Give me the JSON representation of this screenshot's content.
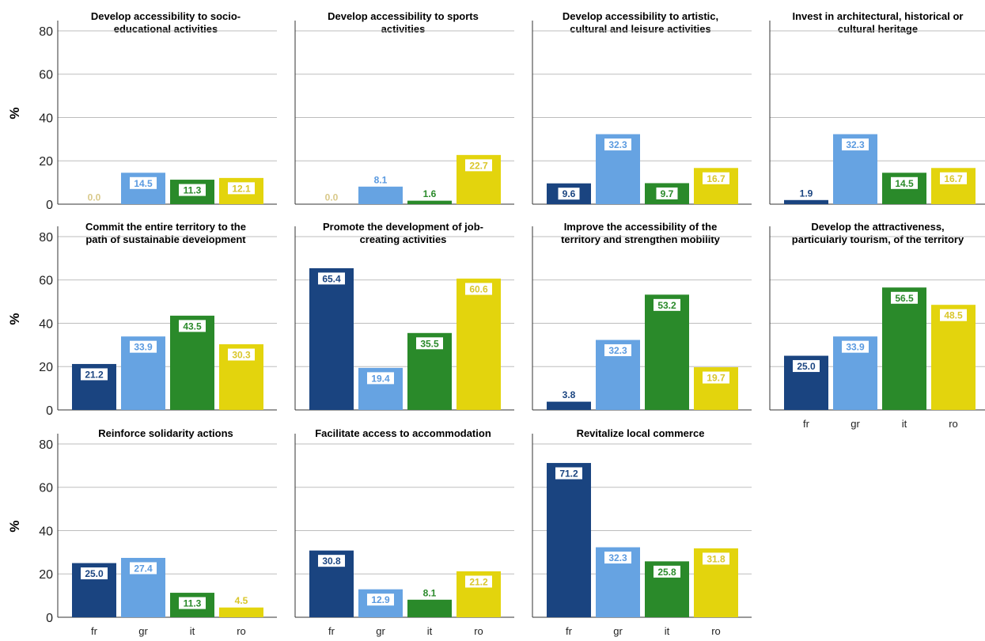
{
  "chart_data": {
    "type": "bar",
    "ylabel": "%",
    "ylim": [
      0,
      84
    ],
    "yticks": [
      0,
      20,
      40,
      60,
      80
    ],
    "grid": true,
    "categories": [
      "fr",
      "gr",
      "it",
      "ro"
    ],
    "colors": [
      "#1a4480",
      "#66a3e2",
      "#2a8a2a",
      "#e3d40d"
    ],
    "label_colors": [
      "#1a4480",
      "#5a9ae0",
      "#2a8a2a",
      "#d9c62a"
    ],
    "zero_label_color": "#d9c98a",
    "panels": [
      {
        "title": "Develop accessibility to socio-educational activities",
        "values": [
          0.0,
          14.5,
          11.3,
          12.1
        ]
      },
      {
        "title": "Develop accessibility to sports activities",
        "values": [
          0.0,
          8.1,
          1.6,
          22.7
        ]
      },
      {
        "title": "Develop accessibility to artistic, cultural and leisure activities",
        "values": [
          9.6,
          32.3,
          9.7,
          16.7
        ]
      },
      {
        "title": "Invest in architectural, historical or cultural heritage",
        "values": [
          1.9,
          32.3,
          14.5,
          16.7
        ]
      },
      {
        "title": "Commit the entire territory to the path of sustainable development",
        "values": [
          21.2,
          33.9,
          43.5,
          30.3
        ]
      },
      {
        "title": "Promote the development of job-creating activities",
        "values": [
          65.4,
          19.4,
          35.5,
          60.6
        ]
      },
      {
        "title": "Improve the accessibility of the territory and strengthen mobility",
        "values": [
          3.8,
          32.3,
          53.2,
          19.7
        ]
      },
      {
        "title": "Develop the attractiveness, particularly tourism, of the territory",
        "values": [
          25.0,
          33.9,
          56.5,
          48.5
        ]
      },
      {
        "title": "Reinforce solidarity actions",
        "values": [
          25.0,
          27.4,
          11.3,
          4.5
        ]
      },
      {
        "title": "Facilitate access to accommodation",
        "values": [
          30.8,
          12.9,
          8.1,
          21.2
        ]
      },
      {
        "title": "Revitalize local commerce",
        "values": [
          71.2,
          32.3,
          25.8,
          31.8
        ]
      }
    ]
  }
}
